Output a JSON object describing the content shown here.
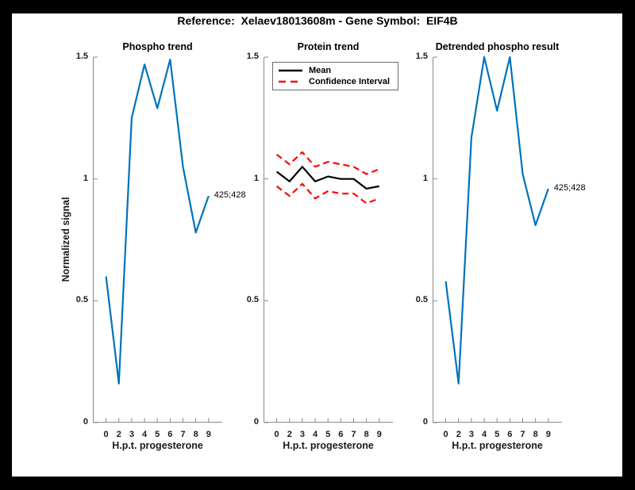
{
  "figure": {
    "title": "Reference:  Xelaev18013608m - Gene Symbol:  EIF4B",
    "ylabel": "Normalized signal"
  },
  "colors": {
    "line_blue": "#0072BD",
    "ci_red": "#FF0000",
    "mean_black": "#000000",
    "axis_gray": "#8a8a8a",
    "background": "#ffffff",
    "frame": "#000000"
  },
  "chart_data": [
    {
      "type": "line",
      "title": "Phospho trend",
      "xlabel": "H.p.t. progesterone",
      "ylabel": "Normalized signal",
      "categories": [
        "0",
        "2",
        "3",
        "4",
        "5",
        "6",
        "7",
        "8",
        "9"
      ],
      "ytick_labels": [
        "0",
        "0.5",
        "1",
        "1.5"
      ],
      "ylim": [
        0,
        1.5
      ],
      "grid": false,
      "series": [
        {
          "name": "phospho-signal",
          "color": "#0072BD",
          "style": "solid",
          "values": [
            0.6,
            0.16,
            1.25,
            1.47,
            1.29,
            1.49,
            1.05,
            0.78,
            0.93
          ]
        }
      ],
      "annotation": {
        "text": "425;428",
        "x": "9",
        "y": 0.93
      }
    },
    {
      "type": "line",
      "title": "Protein trend",
      "xlabel": "H.p.t. progesterone",
      "ylabel": "Normalized signal",
      "categories": [
        "0",
        "2",
        "3",
        "4",
        "5",
        "6",
        "7",
        "8",
        "9"
      ],
      "ytick_labels": [
        "0",
        "0.5",
        "1",
        "1.5"
      ],
      "ylim": [
        0,
        1.5
      ],
      "grid": false,
      "series": [
        {
          "name": "mean",
          "color": "#000000",
          "style": "solid",
          "values": [
            1.03,
            0.99,
            1.05,
            0.99,
            1.01,
            1.0,
            1.0,
            0.96,
            0.97
          ]
        },
        {
          "name": "confidence-upper",
          "color": "#FF0000",
          "style": "dashed",
          "values": [
            1.1,
            1.06,
            1.11,
            1.05,
            1.07,
            1.06,
            1.05,
            1.02,
            1.04
          ]
        },
        {
          "name": "confidence-lower",
          "color": "#FF0000",
          "style": "dashed",
          "values": [
            0.97,
            0.93,
            0.98,
            0.92,
            0.95,
            0.94,
            0.94,
            0.9,
            0.92
          ]
        }
      ],
      "legend": {
        "position": "northwest",
        "entries": [
          {
            "label": "Mean",
            "color": "#000000",
            "style": "solid"
          },
          {
            "label": "Confidence Interval",
            "color": "#FF0000",
            "style": "dashed"
          }
        ]
      }
    },
    {
      "type": "line",
      "title": "Detrended phospho result",
      "xlabel": "H.p.t. progesterone",
      "ylabel": "Normalized signal",
      "categories": [
        "0",
        "2",
        "3",
        "4",
        "5",
        "6",
        "7",
        "8",
        "9"
      ],
      "ytick_labels": [
        "0",
        "0.5",
        "1",
        "1.5"
      ],
      "ylim": [
        0,
        1.5
      ],
      "grid": false,
      "series": [
        {
          "name": "detrended-phospho-signal",
          "color": "#0072BD",
          "style": "solid",
          "values": [
            0.58,
            0.16,
            1.17,
            1.5,
            1.28,
            1.5,
            1.02,
            0.81,
            0.96
          ]
        }
      ],
      "annotation": {
        "text": "425;428",
        "x": "9",
        "y": 0.96
      }
    }
  ]
}
